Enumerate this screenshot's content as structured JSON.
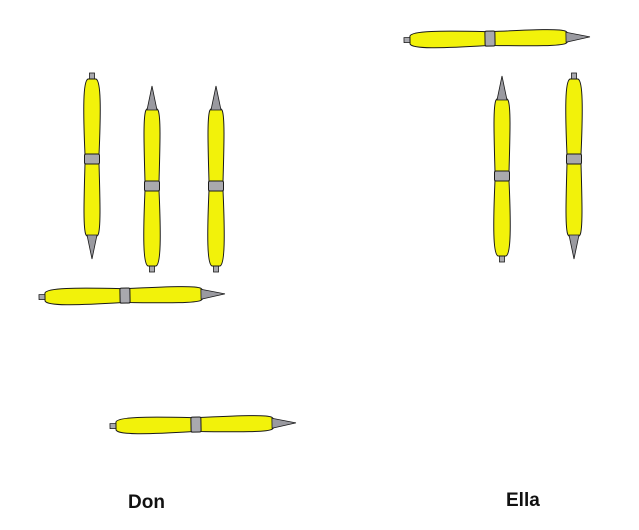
{
  "groups": [
    {
      "name": "Don",
      "pen_count": 5
    },
    {
      "name": "Ella",
      "pen_count": 3
    }
  ],
  "colors": {
    "pen_body": "#f2f20a",
    "pen_outline": "#1a1a1a",
    "pen_band": "#a9a9ae",
    "pen_tip": "#9a9aa0",
    "background": "#ffffff"
  }
}
